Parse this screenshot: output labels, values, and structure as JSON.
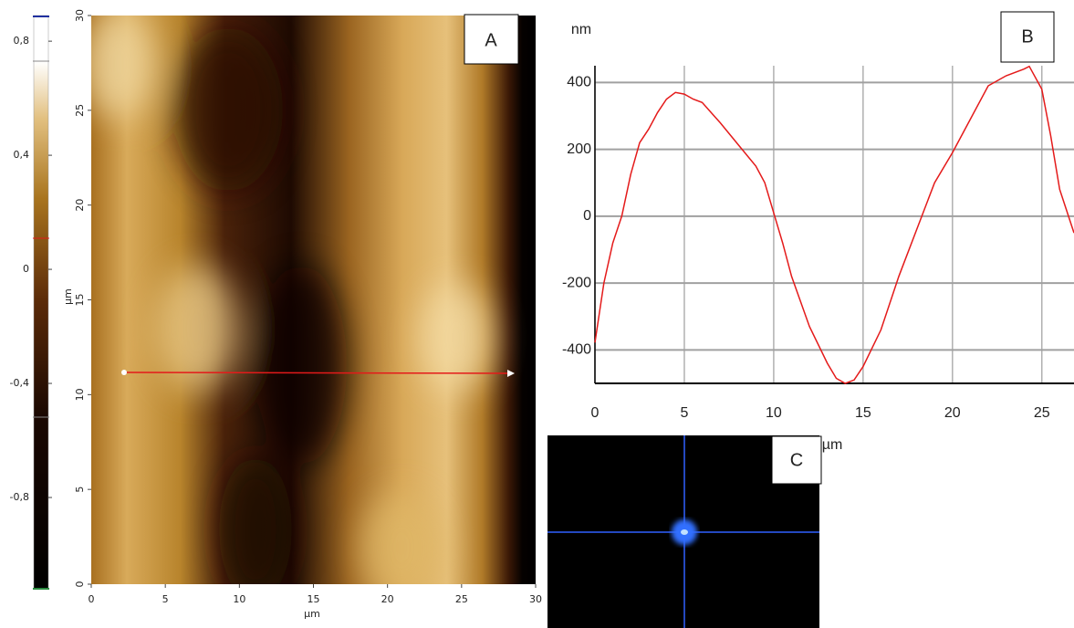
{
  "chart_data": [
    {
      "type": "heatmap",
      "panel_label": "A",
      "x_label": "µm",
      "y_label": "µm",
      "xlim": [
        0,
        30
      ],
      "xticks": [
        0,
        5,
        10,
        15,
        20,
        25,
        30
      ],
      "ylim": [
        0,
        30
      ],
      "yticks": [
        0,
        5,
        10,
        15,
        20,
        25,
        30
      ],
      "zlim": [
        -1.12,
        0.89
      ],
      "zticks": [
        {
          "value": 0.8,
          "label": "0,8"
        },
        {
          "value": 0.4,
          "label": "0,4"
        },
        0,
        {
          "value": -0.4,
          "label": "-0,4"
        },
        {
          "value": -0.8,
          "label": "-0,8"
        }
      ]
    },
    {
      "type": "line",
      "panel_label": "B",
      "y_label": "nm",
      "x_label": "µm",
      "color": "#e41a1a",
      "grid": true,
      "xlim": [
        0,
        26.8
      ],
      "xticks": [
        0,
        5,
        10,
        15,
        20,
        25
      ],
      "ylim": [
        -500,
        450
      ],
      "yticks": [
        -400,
        -200,
        0,
        200,
        400
      ],
      "x": [
        0,
        0.5,
        1,
        1.5,
        2,
        2.5,
        3,
        3.5,
        4,
        4.5,
        5,
        5.5,
        6,
        7,
        8,
        9,
        9.5,
        10,
        10.5,
        11,
        12,
        13,
        13.5,
        14,
        14.5,
        15,
        16,
        17,
        18,
        19,
        20,
        21,
        22,
        23,
        24,
        24.3,
        25,
        25.5,
        26,
        26.8
      ],
      "values": [
        -378,
        -200,
        -80,
        0,
        125,
        220,
        260,
        310,
        350,
        370,
        365,
        350,
        340,
        280,
        215,
        150,
        100,
        10,
        -80,
        -180,
        -330,
        -440,
        -485,
        -500,
        -490,
        -450,
        -340,
        -180,
        -40,
        100,
        190,
        290,
        390,
        420,
        440,
        448,
        380,
        240,
        80,
        -50
      ]
    },
    {
      "type": "image",
      "panel_label": "C"
    }
  ]
}
